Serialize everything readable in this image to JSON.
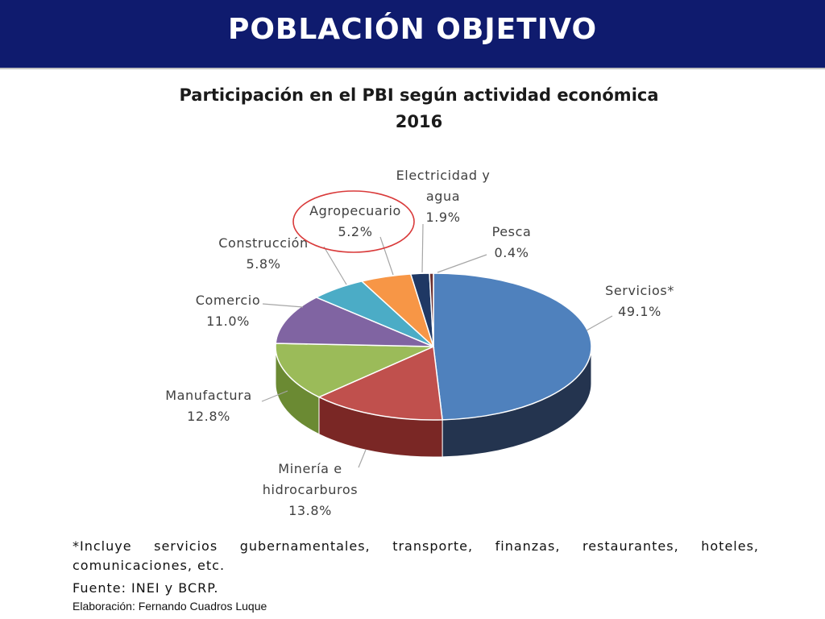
{
  "header": {
    "title": "POBLACIÓN OBJETIVO"
  },
  "chart_data": {
    "type": "pie",
    "title": "Participación en el PBI según actividad económica",
    "subtitle": "2016",
    "unit": "%",
    "slices": [
      {
        "label": "Servicios*",
        "label_lines": [
          "Servicios*"
        ],
        "value": 49.1,
        "value_label": "49.1%",
        "color": "#4f81bd",
        "dark": "#24344f"
      },
      {
        "label": "Minería e hidrocarburos",
        "label_lines": [
          "Minería e",
          "hidrocarburos"
        ],
        "value": 13.8,
        "value_label": "13.8%",
        "color": "#c0504d",
        "dark": "#7a2725"
      },
      {
        "label": "Manufactura",
        "label_lines": [
          "Manufactura"
        ],
        "value": 12.8,
        "value_label": "12.8%",
        "color": "#9bbb59",
        "dark": "#6b8a33"
      },
      {
        "label": "Comercio",
        "label_lines": [
          "Comercio"
        ],
        "value": 11.0,
        "value_label": "11.0%",
        "color": "#8064a2",
        "dark": "#4e3a66"
      },
      {
        "label": "Construcción",
        "label_lines": [
          "Construcción"
        ],
        "value": 5.8,
        "value_label": "5.8%",
        "color": "#4bacc6",
        "dark": "#2a6e80"
      },
      {
        "label": "Agropecuario",
        "label_lines": [
          "Agropecuario"
        ],
        "value": 5.2,
        "value_label": "5.2%",
        "color": "#f79646",
        "dark": "#b0602a"
      },
      {
        "label": "Electricidad y agua",
        "label_lines": [
          "Electricidad y",
          "agua"
        ],
        "value": 1.9,
        "value_label": "1.9%",
        "color": "#1f3864",
        "dark": "#14213b"
      },
      {
        "label": "Pesca",
        "label_lines": [
          "Pesca"
        ],
        "value": 0.4,
        "value_label": "0.4%",
        "color": "#6b2f2e",
        "dark": "#3b1a19"
      }
    ],
    "highlight": "Agropecuario",
    "highlight_color": "#d93a3a"
  },
  "notes": {
    "footnote": "*Incluye servicios gubernamentales, transporte, finanzas, restaurantes, hoteles, comunicaciones, etc.",
    "source": "Fuente: INEI y BCRP.",
    "credit": "Elaboración: Fernando Cuadros Luque"
  }
}
